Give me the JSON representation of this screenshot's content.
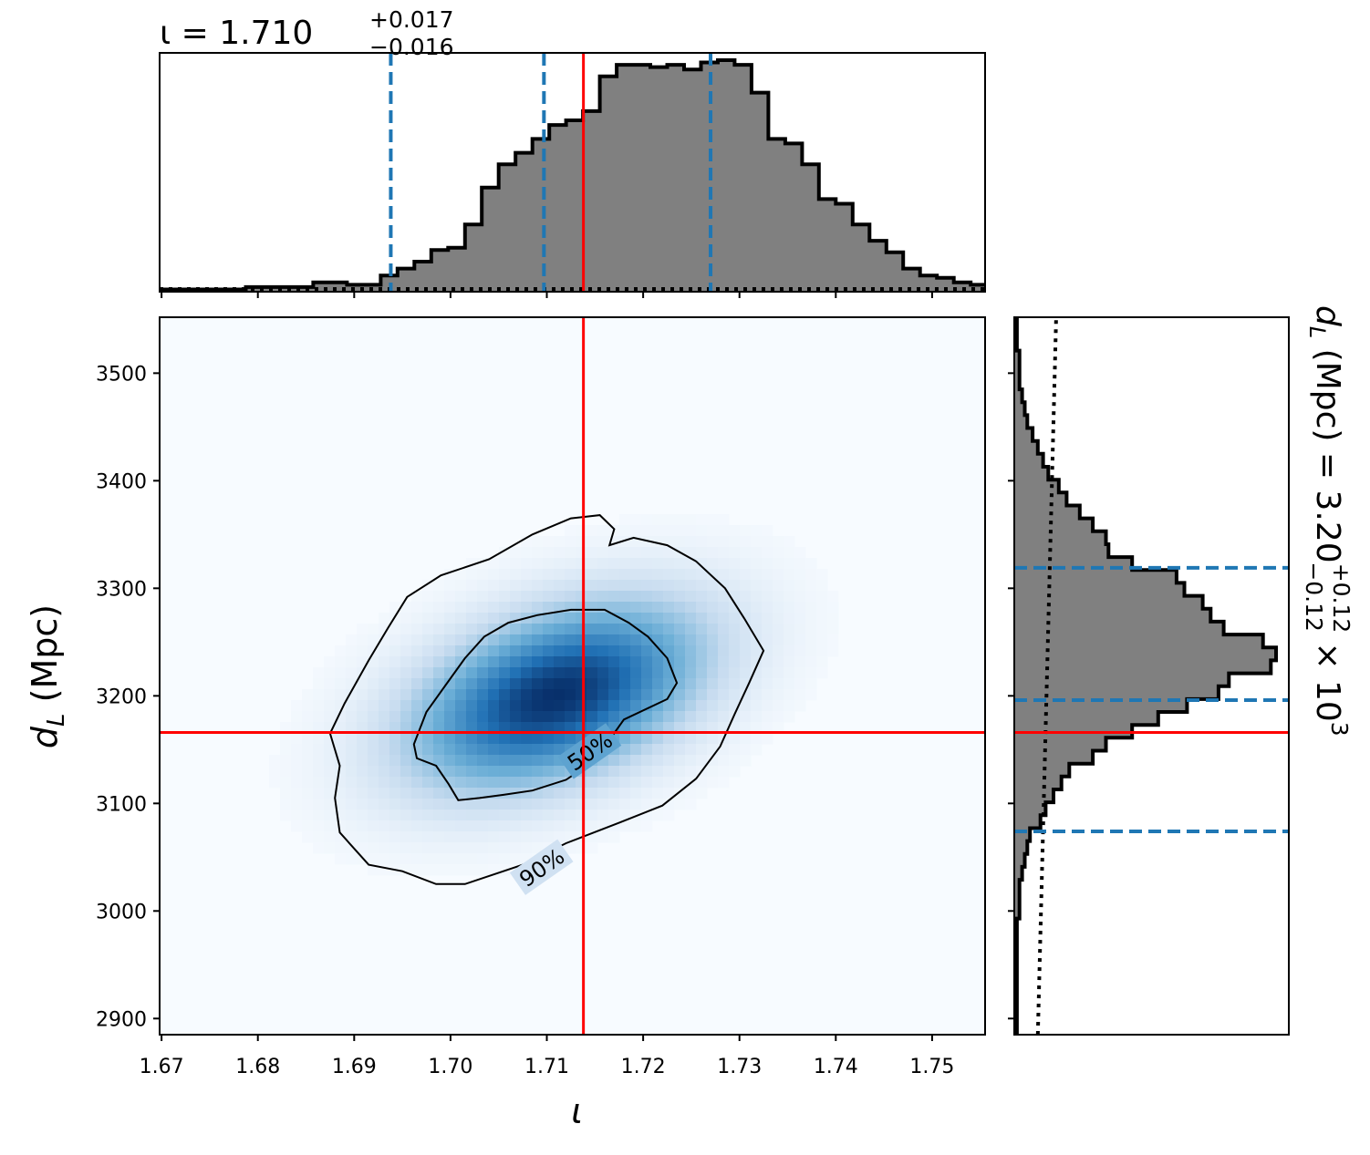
{
  "colors": {
    "truth": "#ff0000",
    "quantile": "#1f77b4",
    "hist_fill": "#808080",
    "hist_edge": "#000000",
    "density_low": "#f7fbff",
    "density_high": "#08306b"
  },
  "chart_data": [
    {
      "panel": "top-marginal",
      "type": "bar",
      "title": {
        "prefix": "ι = 1.710",
        "sup": "+0.017",
        "sub": "−0.016"
      },
      "xlim": [
        1.6698,
        1.7555
      ],
      "y_ticks_shown": false,
      "bins_start": 1.67,
      "bin_width": 0.00175,
      "counts": [
        1,
        1,
        1,
        1,
        1,
        2,
        2,
        2,
        2,
        4,
        4,
        3,
        3,
        7,
        10,
        13,
        18,
        19,
        29,
        45,
        55,
        60,
        66,
        72,
        74,
        78,
        93,
        98,
        98,
        97,
        98,
        96,
        99,
        100,
        98,
        86,
        66,
        64,
        55,
        40,
        38,
        29,
        22,
        17,
        10,
        7,
        6,
        4,
        3,
        2,
        1,
        1
      ],
      "prior_level": 1.2,
      "quantile_lines": [
        1.6938,
        1.7097,
        1.727
      ],
      "truth": 1.7138
    },
    {
      "panel": "joint-density",
      "type": "heatmap",
      "xlabel": "ι",
      "ylabel_main": "d",
      "ylabel_sub": "L",
      "ylabel_rest": " (Mpc)",
      "xlim": [
        1.6698,
        1.7555
      ],
      "ylim": [
        2885,
        3552
      ],
      "xticks": [
        "1.67",
        "1.68",
        "1.69",
        "1.70",
        "1.71",
        "1.72",
        "1.73",
        "1.74",
        "1.75"
      ],
      "yticks": [
        "2900",
        "3000",
        "3100",
        "3200",
        "3300",
        "3400",
        "3500"
      ],
      "density_peak": [
        1.711,
        3200
      ],
      "truth": [
        1.7138,
        3166
      ],
      "contours": [
        {
          "label": "50%",
          "label_at": [
            1.7145,
            3148
          ],
          "points": [
            [
              1.6962,
              3155
            ],
            [
              1.6975,
              3185
            ],
            [
              1.6995,
              3210
            ],
            [
              1.7015,
              3235
            ],
            [
              1.7035,
              3255
            ],
            [
              1.706,
              3268
            ],
            [
              1.709,
              3275
            ],
            [
              1.7125,
              3280
            ],
            [
              1.716,
              3280
            ],
            [
              1.7185,
              3268
            ],
            [
              1.7205,
              3255
            ],
            [
              1.7225,
              3235
            ],
            [
              1.7235,
              3212
            ],
            [
              1.7225,
              3197
            ],
            [
              1.718,
              3178
            ],
            [
              1.715,
              3140
            ],
            [
              1.712,
              3122
            ],
            [
              1.7085,
              3112
            ],
            [
              1.7055,
              3108
            ],
            [
              1.703,
              3105
            ],
            [
              1.7008,
              3103
            ],
            [
              1.6998,
              3118
            ],
            [
              1.6985,
              3135
            ],
            [
              1.6965,
              3142
            ]
          ]
        },
        {
          "label": "90%",
          "label_at": [
            1.7095,
            3040
          ],
          "points": [
            [
              1.6875,
              3165
            ],
            [
              1.689,
              3193
            ],
            [
              1.6915,
              3233
            ],
            [
              1.6935,
              3263
            ],
            [
              1.6955,
              3292
            ],
            [
              1.699,
              3312
            ],
            [
              1.704,
              3327
            ],
            [
              1.7085,
              3350
            ],
            [
              1.7125,
              3365
            ],
            [
              1.7155,
              3368
            ],
            [
              1.717,
              3355
            ],
            [
              1.7165,
              3340
            ],
            [
              1.719,
              3347
            ],
            [
              1.7225,
              3340
            ],
            [
              1.7255,
              3325
            ],
            [
              1.7285,
              3300
            ],
            [
              1.7305,
              3272
            ],
            [
              1.7325,
              3242
            ],
            [
              1.731,
              3212
            ],
            [
              1.7295,
              3183
            ],
            [
              1.728,
              3153
            ],
            [
              1.7255,
              3123
            ],
            [
              1.722,
              3098
            ],
            [
              1.7175,
              3082
            ],
            [
              1.712,
              3063
            ],
            [
              1.7075,
              3043
            ],
            [
              1.7015,
              3025
            ],
            [
              1.6985,
              3025
            ],
            [
              1.695,
              3037
            ],
            [
              1.6915,
              3043
            ],
            [
              1.6885,
              3073
            ],
            [
              1.688,
              3105
            ],
            [
              1.6885,
              3135
            ]
          ]
        }
      ]
    },
    {
      "panel": "right-marginal",
      "type": "bar",
      "orientation": "horizontal",
      "ylabel_main": "d",
      "ylabel_sub": "L",
      "ylabel_rest": " (Mpc) = 3.20",
      "ylabel_sup": "+0.12",
      "ylabel_subscript": "−0.12",
      "ylabel_tail": " × 10",
      "ylabel_exp": "3",
      "ylim": [
        2885,
        3552
      ],
      "x_ticks_shown": false,
      "bins_start": 2885,
      "bin_width": 12,
      "counts": [
        1,
        1,
        1,
        1,
        1,
        1,
        1,
        1,
        1,
        2,
        2,
        2,
        3,
        4,
        5,
        6,
        10,
        12,
        15,
        18,
        21,
        30,
        35,
        45,
        55,
        66,
        78,
        82,
        98,
        100,
        95,
        80,
        75,
        72,
        65,
        62,
        45,
        36,
        35,
        30,
        25,
        20,
        17,
        13,
        11,
        9,
        7,
        5,
        4,
        3,
        2,
        2,
        2,
        1,
        1,
        1
      ],
      "prior_line": [
        [
          9,
          2885
        ],
        [
          16,
          3552
        ]
      ],
      "quantile_lines": [
        3074,
        3196,
        3319
      ],
      "truth": 3166
    }
  ]
}
